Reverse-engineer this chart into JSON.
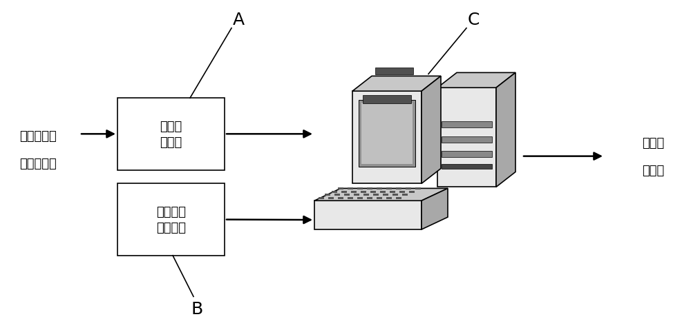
{
  "background_color": "#ffffff",
  "box_A_label": "数据采\n集设备",
  "box_B_label": "置信水平\n设置模块",
  "left_label_line1": "工业生产线",
  "left_label_line2": "待监测信号",
  "right_label_line1": "故障检",
  "right_label_line2": "测结果",
  "label_A": "A",
  "label_B": "B",
  "label_C": "C",
  "box_color": "#ffffff",
  "box_edge_color": "#000000",
  "text_color": "#000000",
  "font_size": 13,
  "label_font_size": 18,
  "monitor_light": "#e8e8e8",
  "monitor_mid": "#c8c8c8",
  "monitor_dark": "#a8a8a8",
  "screen_color": "#909090",
  "screen_inner": "#c0c0c0"
}
